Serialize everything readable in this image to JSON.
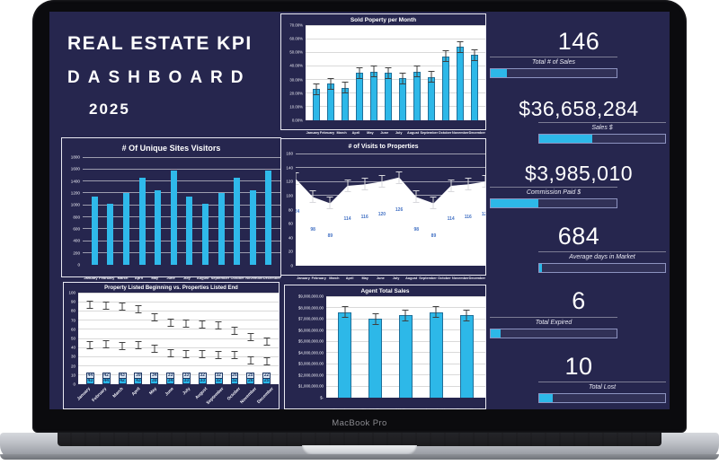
{
  "laptop": {
    "brand_label": "MacBook Pro"
  },
  "title_block": {
    "line1": "REAL ESTATE KPI",
    "line2": "DASHBOARD",
    "year": "2025"
  },
  "colors": {
    "background_navy": "#26264e",
    "accent_cyan": "#2db8e8",
    "stacked_light": "#dde7f3",
    "data_label_blue": "#4472c4"
  },
  "kpis": [
    {
      "value": "146",
      "label": "Total # of Sales",
      "progress": 13
    },
    {
      "value": "$36,658,284",
      "label": "Sales $",
      "progress": 42
    },
    {
      "value": "$3,985,010",
      "label": "Commission Paid $",
      "progress": 38
    },
    {
      "value": "684",
      "label": "Average days in Market",
      "progress": 2
    },
    {
      "value": "6",
      "label": "Total Expired",
      "progress": 8
    },
    {
      "value": "10",
      "label": "Total Lost",
      "progress": 11
    }
  ],
  "chart_data": [
    {
      "id": "sold-property",
      "type": "bar",
      "title": "Sold Poperty per Month",
      "categories": [
        "January",
        "February",
        "March",
        "April",
        "May",
        "June",
        "July",
        "August",
        "September",
        "October",
        "November",
        "December"
      ],
      "values": [
        23,
        27,
        24,
        35,
        36,
        35,
        31,
        36,
        32,
        47,
        54,
        48
      ],
      "unit": "%",
      "ylabels": [
        "70.00%",
        "60.00%",
        "50.00%",
        "40.00%",
        "30.00%",
        "20.00%",
        "10.00%",
        "0.00%"
      ],
      "ylim": [
        0,
        70
      ],
      "error_bars": true,
      "grid": true,
      "legend": "none"
    },
    {
      "id": "unique-visitors",
      "type": "bar",
      "title": "# Of Unique Sites Visitors",
      "categories": [
        "January",
        "February",
        "March",
        "April",
        "May",
        "June",
        "July",
        "August",
        "September",
        "October",
        "November",
        "December"
      ],
      "values": [
        1140,
        1020,
        1200,
        1450,
        1240,
        1570,
        1140,
        1020,
        1200,
        1450,
        1240,
        1570
      ],
      "ylabels": [
        "1800",
        "1600",
        "1400",
        "1200",
        "1000",
        "800",
        "600",
        "400",
        "200",
        "0"
      ],
      "ylim": [
        0,
        1800
      ],
      "error_bars": false,
      "grid": true,
      "legend": "none"
    },
    {
      "id": "visits-properties",
      "type": "area",
      "title": "# of Visits to Properties",
      "categories": [
        "January",
        "February",
        "March",
        "April",
        "May",
        "June",
        "July",
        "August",
        "September",
        "October",
        "November",
        "December"
      ],
      "values": [
        124,
        98,
        89,
        114,
        116,
        120,
        126,
        98,
        89,
        114,
        116,
        120
      ],
      "ylabels": [
        "160",
        "140",
        "120",
        "100",
        "80",
        "60",
        "40",
        "20",
        "0"
      ],
      "ylim": [
        0,
        160
      ],
      "error_bars": true,
      "grid": true,
      "legend": "none"
    },
    {
      "id": "listed-begin-end",
      "type": "stacked-bar",
      "title": "Property Listed Beginning vs. Properties Listed End",
      "categories": [
        "January",
        "February",
        "March",
        "April",
        "May",
        "June",
        "July",
        "August",
        "September",
        "October",
        "November",
        "December"
      ],
      "series": [
        {
          "name": "Property Listed Beginning",
          "values": [
            43,
            44,
            42,
            43,
            39,
            34,
            33,
            33,
            32,
            32,
            26,
            25
          ]
        },
        {
          "name": "Properties Listed End",
          "values": [
            44,
            42,
            43,
            39,
            34,
            33,
            33,
            32,
            32,
            26,
            25,
            22
          ]
        }
      ],
      "ylabels": [
        "100",
        "90",
        "80",
        "70",
        "60",
        "50",
        "40",
        "30",
        "20",
        "10",
        "0"
      ],
      "ylim": [
        0,
        100
      ],
      "error_bars": true,
      "grid": true,
      "legend": "none"
    },
    {
      "id": "agent-sales",
      "type": "bar",
      "title": "Agent Total Sales",
      "categories": [
        "Stan Lee",
        "Christ Sean",
        "Alf Duque",
        "Angela Han",
        "Carez Ponte"
      ],
      "values": [
        7600000,
        7000000,
        7300000,
        7600000,
        7300000
      ],
      "ylabels": [
        "$9,000,000.00",
        "$8,000,000.00",
        "$7,000,000.00",
        "$6,000,000.00",
        "$5,000,000.00",
        "$4,000,000.00",
        "$3,000,000.00",
        "$2,000,000.00",
        "$1,000,000.00",
        "$-"
      ],
      "ylim": [
        0,
        9000000
      ],
      "error_bars": true,
      "grid": true,
      "legend": "none"
    }
  ]
}
